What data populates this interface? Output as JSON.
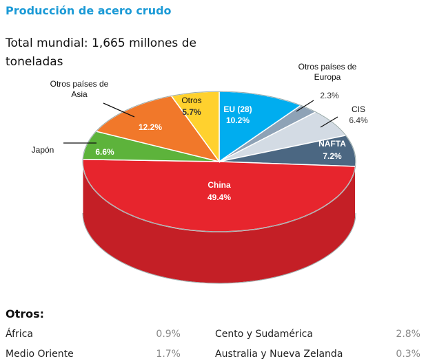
{
  "chart_data": {
    "type": "pie",
    "title": "Producción de acero crudo",
    "subtitle": "Total mundial: 1,665 millones de toneladas",
    "categories": [
      "EU (28)",
      "Otros países de Europa",
      "CIS",
      "NAFTA",
      "China",
      "Japón",
      "Otros países de Asia",
      "Otros"
    ],
    "values": [
      10.2,
      2.3,
      6.4,
      7.2,
      49.4,
      6.6,
      12.2,
      5.7
    ],
    "value_labels": [
      "10.2%",
      "2.3%",
      "6.4%",
      "7.2%",
      "49.4%",
      "6.6%",
      "12.2%",
      "5.7%"
    ],
    "colors": [
      "#00adef",
      "#8ea2b6",
      "#d3dbe4",
      "#4b6782",
      "#e7252d",
      "#5db33b",
      "#f1782a",
      "#ffd12e"
    ],
    "breakdown": {
      "title": "Otros:",
      "rows": [
        [
          "África",
          "0.9%",
          "Cento y Sudamérica",
          "2.8%"
        ],
        [
          "Medio Oriente",
          "1.7%",
          "Australia y Nueva Zelanda",
          "0.3%"
        ]
      ]
    }
  }
}
